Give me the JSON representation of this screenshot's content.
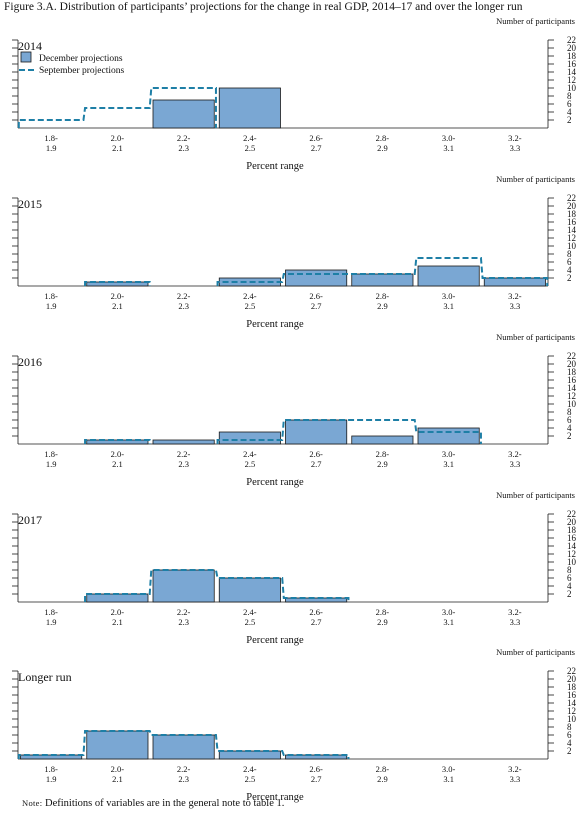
{
  "figure_title": "Figure 3.A. Distribution of participants’ projections for the change in real GDP, 2014–17 and over the longer run",
  "note": {
    "label": "Note:",
    "text": " Definitions of variables are in the general note to table 1."
  },
  "colors": {
    "bar_fill": "#7aa7d3",
    "bar_stroke": "#1a1a1a",
    "dash": "#1e7fa6",
    "axis": "#1a1a1a"
  },
  "chart_data": [
    {
      "type": "bar",
      "title": "2014",
      "xlabel": "Percent range",
      "ylabel": "Number of participants",
      "ylim": [
        0,
        22
      ],
      "yticks": [
        2,
        4,
        6,
        8,
        10,
        12,
        14,
        16,
        18,
        20,
        22
      ],
      "categories": [
        "1.8-\n1.9",
        "2.0-\n2.1",
        "2.2-\n2.3",
        "2.4-\n2.5",
        "2.6-\n2.7",
        "2.8-\n2.9",
        "3.0-\n3.1",
        "3.2-\n3.3"
      ],
      "legend": [
        "December projections",
        "September projections"
      ],
      "series": [
        {
          "name": "December projections",
          "values": [
            0,
            0,
            7,
            10,
            0,
            0,
            0,
            0
          ]
        },
        {
          "name": "September projections",
          "values": [
            2,
            5,
            10,
            0,
            0,
            0,
            0,
            0
          ]
        }
      ]
    },
    {
      "type": "bar",
      "title": "2015",
      "xlabel": "Percent range",
      "ylabel": "Number of participants",
      "ylim": [
        0,
        22
      ],
      "yticks": [
        2,
        4,
        6,
        8,
        10,
        12,
        14,
        16,
        18,
        20,
        22
      ],
      "categories": [
        "1.8-\n1.9",
        "2.0-\n2.1",
        "2.2-\n2.3",
        "2.4-\n2.5",
        "2.6-\n2.7",
        "2.8-\n2.9",
        "3.0-\n3.1",
        "3.2-\n3.3"
      ],
      "series": [
        {
          "name": "December projections",
          "values": [
            0,
            1,
            0,
            2,
            4,
            3,
            5,
            2
          ]
        },
        {
          "name": "September projections",
          "values": [
            0,
            1,
            0,
            1,
            3,
            3,
            7,
            2
          ]
        }
      ]
    },
    {
      "type": "bar",
      "title": "2016",
      "xlabel": "Percent range",
      "ylabel": "Number of participants",
      "ylim": [
        0,
        22
      ],
      "yticks": [
        2,
        4,
        6,
        8,
        10,
        12,
        14,
        16,
        18,
        20,
        22
      ],
      "categories": [
        "1.8-\n1.9",
        "2.0-\n2.1",
        "2.2-\n2.3",
        "2.4-\n2.5",
        "2.6-\n2.7",
        "2.8-\n2.9",
        "3.0-\n3.1",
        "3.2-\n3.3"
      ],
      "series": [
        {
          "name": "December projections",
          "values": [
            0,
            1,
            1,
            3,
            6,
            2,
            4,
            0
          ]
        },
        {
          "name": "September projections",
          "values": [
            0,
            1,
            0,
            1,
            6,
            6,
            3,
            0
          ]
        }
      ]
    },
    {
      "type": "bar",
      "title": "2017",
      "xlabel": "Percent range",
      "ylabel": "Number of participants",
      "ylim": [
        0,
        22
      ],
      "yticks": [
        2,
        4,
        6,
        8,
        10,
        12,
        14,
        16,
        18,
        20,
        22
      ],
      "categories": [
        "1.8-\n1.9",
        "2.0-\n2.1",
        "2.2-\n2.3",
        "2.4-\n2.5",
        "2.6-\n2.7",
        "2.8-\n2.9",
        "3.0-\n3.1",
        "3.2-\n3.3"
      ],
      "series": [
        {
          "name": "December projections",
          "values": [
            0,
            2,
            8,
            6,
            1,
            0,
            0,
            0
          ]
        },
        {
          "name": "September projections",
          "values": [
            0,
            2,
            8,
            6,
            1,
            0,
            0,
            0
          ]
        }
      ]
    },
    {
      "type": "bar",
      "title": "Longer run",
      "xlabel": "Percent range",
      "ylabel": "Number of participants",
      "ylim": [
        0,
        22
      ],
      "yticks": [
        2,
        4,
        6,
        8,
        10,
        12,
        14,
        16,
        18,
        20,
        22
      ],
      "categories": [
        "1.8-\n1.9",
        "2.0-\n2.1",
        "2.2-\n2.3",
        "2.4-\n2.5",
        "2.6-\n2.7",
        "2.8-\n2.9",
        "3.0-\n3.1",
        "3.2-\n3.3"
      ],
      "series": [
        {
          "name": "December projections",
          "values": [
            1,
            7,
            6,
            2,
            1,
            0,
            0,
            0
          ]
        },
        {
          "name": "September projections",
          "values": [
            1,
            7,
            6,
            2,
            1,
            0,
            0,
            0
          ]
        }
      ]
    }
  ]
}
